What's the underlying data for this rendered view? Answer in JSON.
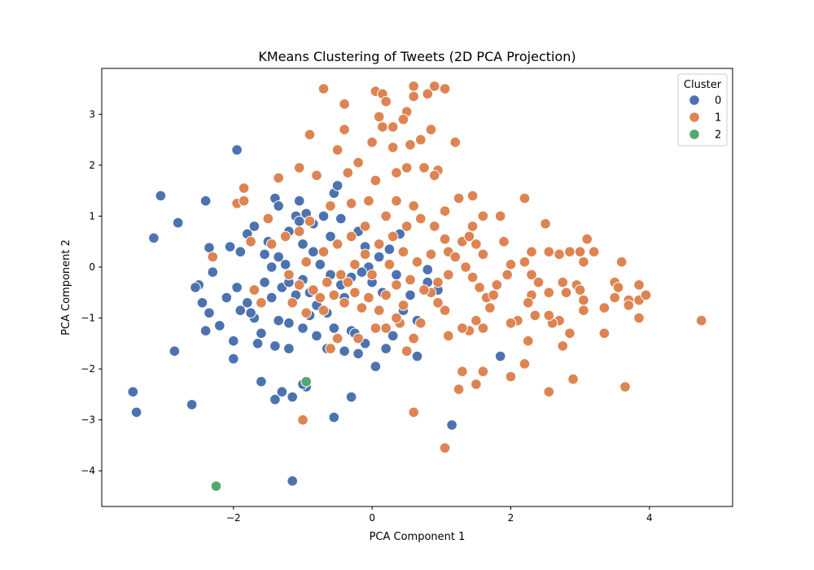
{
  "chart_data": {
    "type": "scatter",
    "title": "KMeans Clustering of Tweets (2D PCA Projection)",
    "xlabel": "PCA Component 1",
    "ylabel": "PCA Component 2",
    "xlim": [
      -3.9,
      5.2
    ],
    "ylim": [
      -4.7,
      3.9
    ],
    "x_ticks": [
      -2,
      0,
      2,
      4
    ],
    "y_ticks": [
      -4,
      -3,
      -2,
      -1,
      0,
      1,
      2,
      3
    ],
    "x_tick_labels": [
      "−2",
      "0",
      "2",
      "4"
    ],
    "y_tick_labels": [
      "−4",
      "−3",
      "−2",
      "−1",
      "0",
      "1",
      "2",
      "3"
    ],
    "grid": false,
    "legend": {
      "title": "Cluster",
      "placement": "top-right"
    },
    "series": [
      {
        "name": "0",
        "color": "#4c72b0",
        "points": [
          [
            -3.05,
            1.4
          ],
          [
            -3.15,
            0.57
          ],
          [
            -2.8,
            0.87
          ],
          [
            -2.4,
            1.3
          ],
          [
            -1.95,
            2.3
          ],
          [
            -2.35,
            0.38
          ],
          [
            -2.05,
            0.4
          ],
          [
            -2.3,
            -0.1
          ],
          [
            -2.5,
            -0.35
          ],
          [
            -2.45,
            -0.7
          ],
          [
            -2.35,
            -0.9
          ],
          [
            -2.2,
            -1.15
          ],
          [
            -2.4,
            -1.25
          ],
          [
            -2.0,
            -1.45
          ],
          [
            -2.0,
            -1.8
          ],
          [
            -2.85,
            -1.65
          ],
          [
            -2.6,
            -2.7
          ],
          [
            -3.45,
            -2.45
          ],
          [
            -3.4,
            -2.85
          ],
          [
            -1.95,
            -0.4
          ],
          [
            -1.8,
            -0.7
          ],
          [
            -1.7,
            -1.0
          ],
          [
            -1.65,
            -1.5
          ],
          [
            -1.6,
            -2.25
          ],
          [
            -1.4,
            -2.6
          ],
          [
            -1.3,
            -2.45
          ],
          [
            -1.15,
            -2.55
          ],
          [
            -1.15,
            -4.2
          ],
          [
            -0.95,
            -2.35
          ],
          [
            -0.55,
            -2.95
          ],
          [
            -0.3,
            -2.55
          ],
          [
            -1.8,
            0.65
          ],
          [
            -1.7,
            0.8
          ],
          [
            -1.5,
            0.5
          ],
          [
            -1.4,
            1.35
          ],
          [
            -1.35,
            1.2
          ],
          [
            -1.35,
            0.2
          ],
          [
            -1.25,
            0.05
          ],
          [
            -1.2,
            0.7
          ],
          [
            -1.1,
            1.0
          ],
          [
            -1.05,
            1.3
          ],
          [
            -0.95,
            1.05
          ],
          [
            -0.85,
            0.85
          ],
          [
            -0.7,
            1.0
          ],
          [
            -0.55,
            1.45
          ],
          [
            -0.5,
            1.6
          ],
          [
            -1.3,
            -0.4
          ],
          [
            -1.2,
            -0.3
          ],
          [
            -1.1,
            -0.55
          ],
          [
            -1.0,
            -0.25
          ],
          [
            -0.9,
            -0.5
          ],
          [
            -0.8,
            -0.75
          ],
          [
            -0.65,
            -0.9
          ],
          [
            -0.55,
            -1.2
          ],
          [
            -0.4,
            -1.65
          ],
          [
            -0.3,
            -1.25
          ],
          [
            -0.25,
            -1.3
          ],
          [
            -0.1,
            -1.5
          ],
          [
            0.05,
            -1.95
          ],
          [
            0.2,
            -1.6
          ],
          [
            0.3,
            -1.35
          ],
          [
            0.45,
            -0.85
          ],
          [
            0.55,
            -0.55
          ],
          [
            0.65,
            -1.05
          ],
          [
            0.65,
            -1.75
          ],
          [
            0.8,
            -0.3
          ],
          [
            0.8,
            -0.05
          ],
          [
            0.95,
            -0.45
          ],
          [
            1.15,
            -3.1
          ],
          [
            1.85,
            -1.75
          ],
          [
            0.4,
            0.65
          ],
          [
            0.25,
            0.35
          ],
          [
            0.1,
            0.2
          ],
          [
            -0.05,
            0.0
          ],
          [
            -0.15,
            -0.1
          ],
          [
            -0.3,
            -0.2
          ],
          [
            -0.45,
            -0.35
          ],
          [
            -0.6,
            -0.15
          ],
          [
            -0.75,
            0.05
          ],
          [
            -0.85,
            0.3
          ],
          [
            -1.0,
            0.45
          ],
          [
            -1.45,
            0.0
          ],
          [
            -1.55,
            -0.3
          ],
          [
            -1.45,
            -0.6
          ],
          [
            -1.35,
            -1.05
          ],
          [
            -1.2,
            -1.1
          ],
          [
            -1.0,
            -1.2
          ],
          [
            -0.8,
            -1.35
          ],
          [
            -0.65,
            -1.6
          ],
          [
            -1.2,
            -1.6
          ],
          [
            -1.4,
            -1.55
          ],
          [
            -1.6,
            -1.3
          ],
          [
            -1.75,
            -0.9
          ],
          [
            -1.9,
            -0.85
          ],
          [
            -0.2,
            -1.7
          ],
          [
            -0.4,
            -0.6
          ],
          [
            0.15,
            -0.5
          ],
          [
            0.35,
            -0.15
          ],
          [
            -1.05,
            0.9
          ],
          [
            -0.45,
            0.95
          ],
          [
            -0.2,
            0.7
          ],
          [
            -0.6,
            0.6
          ],
          [
            -0.9,
            -0.95
          ],
          [
            -1.55,
            0.25
          ],
          [
            -0.1,
            0.4
          ],
          [
            0.0,
            -0.3
          ],
          [
            -2.1,
            -0.6
          ],
          [
            -1.9,
            0.3
          ],
          [
            -2.55,
            -0.4
          ],
          [
            -1.0,
            -2.3
          ]
        ]
      },
      {
        "name": "1",
        "color": "#dd8452",
        "points": [
          [
            -0.7,
            3.5
          ],
          [
            -0.4,
            3.2
          ],
          [
            0.05,
            3.45
          ],
          [
            0.15,
            3.4
          ],
          [
            0.6,
            3.55
          ],
          [
            0.9,
            3.55
          ],
          [
            1.05,
            3.5
          ],
          [
            0.8,
            3.4
          ],
          [
            0.6,
            3.35
          ],
          [
            0.5,
            3.05
          ],
          [
            0.2,
            3.25
          ],
          [
            0.1,
            2.95
          ],
          [
            0.45,
            2.9
          ],
          [
            0.3,
            2.75
          ],
          [
            0.15,
            2.75
          ],
          [
            -0.4,
            2.7
          ],
          [
            -0.9,
            2.6
          ],
          [
            0.0,
            2.45
          ],
          [
            0.3,
            2.35
          ],
          [
            0.55,
            2.4
          ],
          [
            0.7,
            2.5
          ],
          [
            0.85,
            2.7
          ],
          [
            1.2,
            2.45
          ],
          [
            -0.5,
            2.3
          ],
          [
            -0.8,
            1.8
          ],
          [
            -1.05,
            1.95
          ],
          [
            -1.35,
            1.75
          ],
          [
            -1.85,
            1.55
          ],
          [
            -1.95,
            1.25
          ],
          [
            -1.85,
            1.3
          ],
          [
            -0.35,
            1.85
          ],
          [
            -0.2,
            2.05
          ],
          [
            0.05,
            1.7
          ],
          [
            0.35,
            1.85
          ],
          [
            0.5,
            1.95
          ],
          [
            0.75,
            1.95
          ],
          [
            0.95,
            1.9
          ],
          [
            0.9,
            1.8
          ],
          [
            1.25,
            1.35
          ],
          [
            1.45,
            1.4
          ],
          [
            1.05,
            1.1
          ],
          [
            0.6,
            1.2
          ],
          [
            0.35,
            1.3
          ],
          [
            -0.05,
            1.3
          ],
          [
            -0.3,
            1.25
          ],
          [
            -0.6,
            1.2
          ],
          [
            -0.9,
            0.9
          ],
          [
            -1.05,
            0.7
          ],
          [
            -1.25,
            0.6
          ],
          [
            -1.45,
            0.45
          ],
          [
            -1.5,
            0.95
          ],
          [
            -1.75,
            0.5
          ],
          [
            -2.3,
            0.2
          ],
          [
            -1.7,
            -0.45
          ],
          [
            -1.6,
            -0.7
          ],
          [
            1.6,
            1.0
          ],
          [
            1.85,
            1.0
          ],
          [
            2.2,
            1.35
          ],
          [
            1.9,
            0.5
          ],
          [
            1.6,
            0.25
          ],
          [
            1.5,
            0.45
          ],
          [
            1.3,
            0.5
          ],
          [
            1.1,
            0.3
          ],
          [
            1.45,
            0.8
          ],
          [
            1.4,
            0.6
          ],
          [
            2.0,
            0.05
          ],
          [
            2.2,
            0.1
          ],
          [
            2.3,
            0.3
          ],
          [
            2.5,
            0.85
          ],
          [
            2.55,
            0.3
          ],
          [
            2.7,
            0.25
          ],
          [
            2.85,
            0.3
          ],
          [
            3.0,
            0.3
          ],
          [
            3.1,
            0.55
          ],
          [
            3.2,
            0.3
          ],
          [
            3.05,
            0.1
          ],
          [
            2.3,
            -0.15
          ],
          [
            2.4,
            -0.3
          ],
          [
            2.3,
            -0.55
          ],
          [
            2.25,
            -0.7
          ],
          [
            2.1,
            -1.05
          ],
          [
            2.0,
            -1.1
          ],
          [
            1.7,
            -0.8
          ],
          [
            1.5,
            -1.05
          ],
          [
            1.4,
            -1.25
          ],
          [
            1.3,
            -1.2
          ],
          [
            1.1,
            -1.35
          ],
          [
            1.05,
            -0.85
          ],
          [
            0.95,
            -0.7
          ],
          [
            0.85,
            -0.5
          ],
          [
            2.75,
            -0.3
          ],
          [
            2.8,
            -0.5
          ],
          [
            2.95,
            -0.35
          ],
          [
            3.0,
            -0.45
          ],
          [
            3.05,
            -0.65
          ],
          [
            3.05,
            -0.85
          ],
          [
            3.35,
            -0.8
          ],
          [
            3.35,
            -1.3
          ],
          [
            3.5,
            -0.3
          ],
          [
            3.55,
            -0.4
          ],
          [
            3.5,
            -0.6
          ],
          [
            3.7,
            -0.65
          ],
          [
            3.7,
            -0.75
          ],
          [
            3.85,
            -0.65
          ],
          [
            3.85,
            -0.35
          ],
          [
            3.95,
            -0.55
          ],
          [
            3.85,
            -1.0
          ],
          [
            3.6,
            0.1
          ],
          [
            4.75,
            -1.05
          ],
          [
            3.65,
            -2.35
          ],
          [
            2.9,
            -2.2
          ],
          [
            2.55,
            -2.45
          ],
          [
            2.75,
            -1.55
          ],
          [
            2.85,
            -1.3
          ],
          [
            2.7,
            -1.05
          ],
          [
            2.6,
            -1.1
          ],
          [
            2.55,
            -0.95
          ],
          [
            2.25,
            -1.45
          ],
          [
            2.2,
            -1.9
          ],
          [
            2.0,
            -2.15
          ],
          [
            1.6,
            -2.05
          ],
          [
            1.5,
            -2.3
          ],
          [
            1.3,
            -2.05
          ],
          [
            1.25,
            -2.4
          ],
          [
            1.05,
            -3.55
          ],
          [
            0.6,
            -2.85
          ],
          [
            -1.0,
            -3.0
          ],
          [
            -0.6,
            -1.6
          ],
          [
            -0.5,
            -1.4
          ],
          [
            -0.2,
            -1.4
          ],
          [
            0.05,
            -1.2
          ],
          [
            0.2,
            -1.2
          ],
          [
            0.4,
            -1.1
          ],
          [
            0.5,
            -1.65
          ],
          [
            0.6,
            -1.4
          ],
          [
            0.7,
            -1.1
          ],
          [
            0.35,
            -1.0
          ],
          [
            0.1,
            -0.85
          ],
          [
            -0.15,
            -0.8
          ],
          [
            -0.4,
            -0.7
          ],
          [
            -0.7,
            -0.85
          ],
          [
            -0.95,
            -0.9
          ],
          [
            -1.15,
            -0.7
          ],
          [
            -0.85,
            -0.45
          ],
          [
            -0.65,
            -0.3
          ],
          [
            -0.45,
            -0.15
          ],
          [
            -0.25,
            0.05
          ],
          [
            -0.1,
            0.25
          ],
          [
            0.1,
            0.45
          ],
          [
            0.3,
            0.6
          ],
          [
            0.5,
            0.8
          ],
          [
            0.7,
            0.95
          ],
          [
            0.9,
            0.8
          ],
          [
            1.05,
            0.55
          ],
          [
            1.2,
            0.2
          ],
          [
            1.35,
            0.0
          ],
          [
            1.45,
            -0.2
          ],
          [
            1.55,
            -0.4
          ],
          [
            1.65,
            -0.6
          ],
          [
            1.8,
            -0.35
          ],
          [
            1.95,
            -0.15
          ],
          [
            1.1,
            -0.15
          ],
          [
            0.95,
            -0.3
          ],
          [
            0.75,
            -0.45
          ],
          [
            0.55,
            -0.25
          ],
          [
            0.35,
            -0.35
          ],
          [
            0.2,
            -0.55
          ],
          [
            -0.05,
            -0.6
          ],
          [
            -0.25,
            -0.5
          ],
          [
            -0.55,
            -0.55
          ],
          [
            -0.75,
            -0.6
          ],
          [
            -1.05,
            -0.35
          ],
          [
            -1.2,
            -0.15
          ],
          [
            -0.95,
            0.1
          ],
          [
            -0.7,
            0.3
          ],
          [
            -0.5,
            0.45
          ],
          [
            -0.3,
            0.6
          ],
          [
            -0.1,
            0.8
          ],
          [
            0.2,
            1.0
          ],
          [
            0.45,
            0.3
          ],
          [
            0.65,
            0.1
          ],
          [
            0.85,
            0.25
          ],
          [
            0.25,
            0.05
          ],
          [
            0.0,
            -0.15
          ],
          [
            -0.35,
            -0.3
          ],
          [
            1.6,
            -1.2
          ],
          [
            1.75,
            -0.55
          ],
          [
            2.55,
            -0.5
          ],
          [
            2.35,
            -0.95
          ],
          [
            0.45,
            -0.75
          ]
        ]
      },
      {
        "name": "2",
        "color": "#55a868",
        "points": [
          [
            -2.25,
            -4.3
          ],
          [
            -0.95,
            -2.25
          ]
        ]
      }
    ]
  }
}
